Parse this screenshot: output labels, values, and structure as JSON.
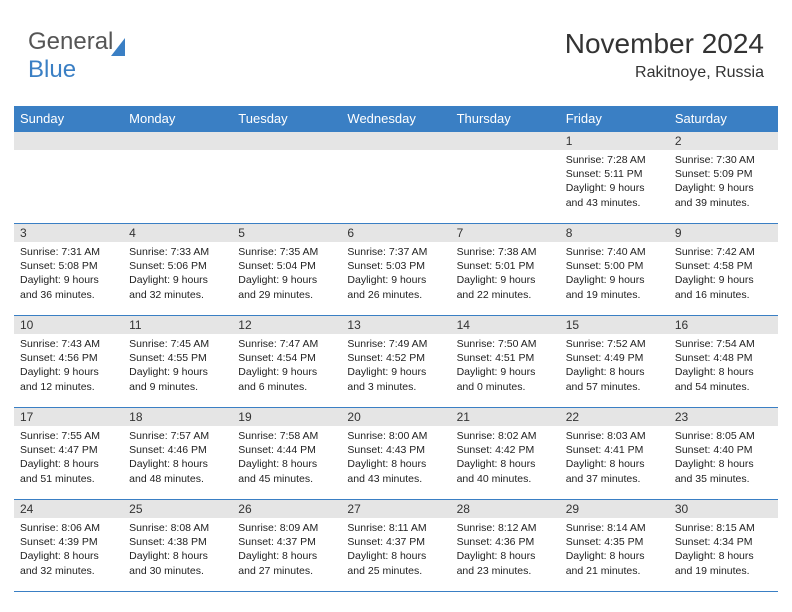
{
  "brand": {
    "part1": "General",
    "part2": "Blue"
  },
  "title": "November 2024",
  "location": "Rakitnoye, Russia",
  "colors": {
    "header_bg": "#3a7fc4",
    "header_fg": "#ffffff",
    "date_strip_bg": "#e5e5e5",
    "cell_border": "#3a7fc4",
    "text": "#222222",
    "title_text": "#333333"
  },
  "fonts": {
    "title_size_pt": 21,
    "location_size_pt": 12,
    "day_header_size_pt": 10,
    "body_size_pt": 8
  },
  "layout": {
    "columns": 7,
    "rows": 5,
    "start_weekday": "Sunday"
  },
  "day_headers": [
    "Sunday",
    "Monday",
    "Tuesday",
    "Wednesday",
    "Thursday",
    "Friday",
    "Saturday"
  ],
  "weeks": [
    [
      null,
      null,
      null,
      null,
      null,
      {
        "date": "1",
        "sunrise": "7:28 AM",
        "sunset": "5:11 PM",
        "dl_h": 9,
        "dl_m": 43
      },
      {
        "date": "2",
        "sunrise": "7:30 AM",
        "sunset": "5:09 PM",
        "dl_h": 9,
        "dl_m": 39
      }
    ],
    [
      {
        "date": "3",
        "sunrise": "7:31 AM",
        "sunset": "5:08 PM",
        "dl_h": 9,
        "dl_m": 36
      },
      {
        "date": "4",
        "sunrise": "7:33 AM",
        "sunset": "5:06 PM",
        "dl_h": 9,
        "dl_m": 32
      },
      {
        "date": "5",
        "sunrise": "7:35 AM",
        "sunset": "5:04 PM",
        "dl_h": 9,
        "dl_m": 29
      },
      {
        "date": "6",
        "sunrise": "7:37 AM",
        "sunset": "5:03 PM",
        "dl_h": 9,
        "dl_m": 26
      },
      {
        "date": "7",
        "sunrise": "7:38 AM",
        "sunset": "5:01 PM",
        "dl_h": 9,
        "dl_m": 22
      },
      {
        "date": "8",
        "sunrise": "7:40 AM",
        "sunset": "5:00 PM",
        "dl_h": 9,
        "dl_m": 19
      },
      {
        "date": "9",
        "sunrise": "7:42 AM",
        "sunset": "4:58 PM",
        "dl_h": 9,
        "dl_m": 16
      }
    ],
    [
      {
        "date": "10",
        "sunrise": "7:43 AM",
        "sunset": "4:56 PM",
        "dl_h": 9,
        "dl_m": 12
      },
      {
        "date": "11",
        "sunrise": "7:45 AM",
        "sunset": "4:55 PM",
        "dl_h": 9,
        "dl_m": 9
      },
      {
        "date": "12",
        "sunrise": "7:47 AM",
        "sunset": "4:54 PM",
        "dl_h": 9,
        "dl_m": 6
      },
      {
        "date": "13",
        "sunrise": "7:49 AM",
        "sunset": "4:52 PM",
        "dl_h": 9,
        "dl_m": 3
      },
      {
        "date": "14",
        "sunrise": "7:50 AM",
        "sunset": "4:51 PM",
        "dl_h": 9,
        "dl_m": 0
      },
      {
        "date": "15",
        "sunrise": "7:52 AM",
        "sunset": "4:49 PM",
        "dl_h": 8,
        "dl_m": 57
      },
      {
        "date": "16",
        "sunrise": "7:54 AM",
        "sunset": "4:48 PM",
        "dl_h": 8,
        "dl_m": 54
      }
    ],
    [
      {
        "date": "17",
        "sunrise": "7:55 AM",
        "sunset": "4:47 PM",
        "dl_h": 8,
        "dl_m": 51
      },
      {
        "date": "18",
        "sunrise": "7:57 AM",
        "sunset": "4:46 PM",
        "dl_h": 8,
        "dl_m": 48
      },
      {
        "date": "19",
        "sunrise": "7:58 AM",
        "sunset": "4:44 PM",
        "dl_h": 8,
        "dl_m": 45
      },
      {
        "date": "20",
        "sunrise": "8:00 AM",
        "sunset": "4:43 PM",
        "dl_h": 8,
        "dl_m": 43
      },
      {
        "date": "21",
        "sunrise": "8:02 AM",
        "sunset": "4:42 PM",
        "dl_h": 8,
        "dl_m": 40
      },
      {
        "date": "22",
        "sunrise": "8:03 AM",
        "sunset": "4:41 PM",
        "dl_h": 8,
        "dl_m": 37
      },
      {
        "date": "23",
        "sunrise": "8:05 AM",
        "sunset": "4:40 PM",
        "dl_h": 8,
        "dl_m": 35
      }
    ],
    [
      {
        "date": "24",
        "sunrise": "8:06 AM",
        "sunset": "4:39 PM",
        "dl_h": 8,
        "dl_m": 32
      },
      {
        "date": "25",
        "sunrise": "8:08 AM",
        "sunset": "4:38 PM",
        "dl_h": 8,
        "dl_m": 30
      },
      {
        "date": "26",
        "sunrise": "8:09 AM",
        "sunset": "4:37 PM",
        "dl_h": 8,
        "dl_m": 27
      },
      {
        "date": "27",
        "sunrise": "8:11 AM",
        "sunset": "4:37 PM",
        "dl_h": 8,
        "dl_m": 25
      },
      {
        "date": "28",
        "sunrise": "8:12 AM",
        "sunset": "4:36 PM",
        "dl_h": 8,
        "dl_m": 23
      },
      {
        "date": "29",
        "sunrise": "8:14 AM",
        "sunset": "4:35 PM",
        "dl_h": 8,
        "dl_m": 21
      },
      {
        "date": "30",
        "sunrise": "8:15 AM",
        "sunset": "4:34 PM",
        "dl_h": 8,
        "dl_m": 19
      }
    ]
  ],
  "labels": {
    "sunrise": "Sunrise:",
    "sunset": "Sunset:",
    "daylight": "Daylight:",
    "hours_word": "hours",
    "and_word": "and",
    "minutes_word": "minutes."
  }
}
